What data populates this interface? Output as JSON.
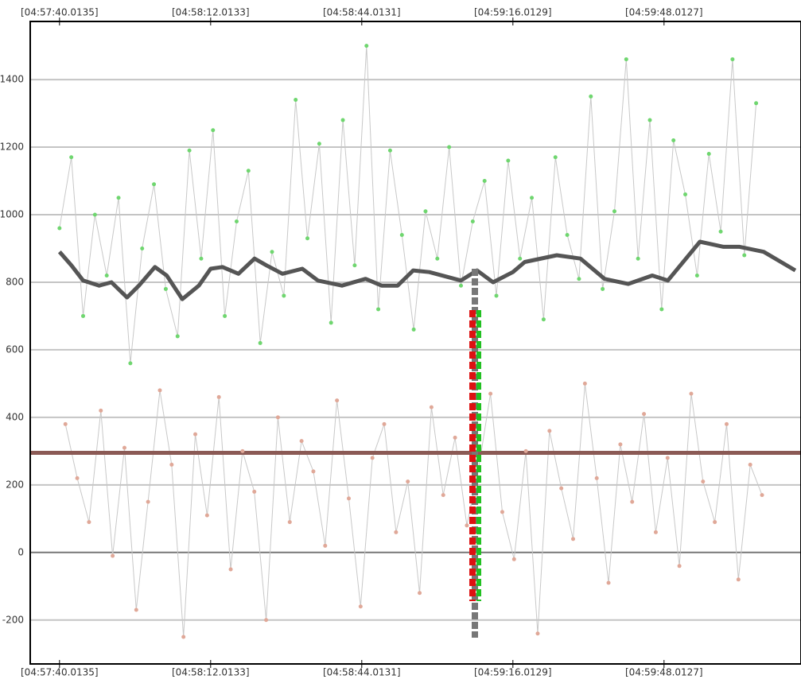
{
  "chart_data": {
    "type": "line",
    "xlim": [
      -6.2,
      157
    ],
    "ylim": [
      -330,
      1572
    ],
    "xticks": [
      {
        "value": 0,
        "label": "[04:57:40.0135]"
      },
      {
        "value": 32,
        "label": "[04:58:12.0133]"
      },
      {
        "value": 64,
        "label": "[04:58:44.0131]"
      },
      {
        "value": 96,
        "label": "[04:59:16.0129]"
      },
      {
        "value": 128,
        "label": "[04:59:48.0127]"
      }
    ],
    "yticks": [
      -200,
      0,
      200,
      400,
      600,
      800,
      1000,
      1200,
      1400
    ],
    "grid": true,
    "series": [
      {
        "mode": "lines+markers",
        "color": "#6fd66f",
        "line_color": "#c8c8c8",
        "line_width": 1,
        "x": [
          0,
          2.5,
          5,
          7.5,
          10,
          12.5,
          15,
          17.5,
          20,
          22.5,
          25,
          27.5,
          30,
          32.5,
          35,
          37.5,
          40,
          42.5,
          45,
          47.5,
          50,
          52.5,
          55,
          57.5,
          60,
          62.5,
          65,
          67.5,
          70,
          72.5,
          75,
          77.5,
          80,
          82.5,
          85,
          87.5,
          90,
          92.5,
          95,
          97.5,
          100,
          102.5,
          105,
          107.5,
          110,
          112.5,
          115,
          117.5,
          120,
          122.5,
          125,
          127.5,
          130,
          132.5,
          135,
          137.5,
          140,
          142.5,
          145,
          147.5
        ],
        "values": [
          960,
          1170,
          700,
          1000,
          820,
          1050,
          560,
          900,
          1090,
          780,
          640,
          1190,
          870,
          1250,
          700,
          980,
          1130,
          620,
          890,
          760,
          1340,
          930,
          1210,
          680,
          1280,
          850,
          1500,
          720,
          1190,
          940,
          660,
          1010,
          870,
          1200,
          790,
          980,
          1100,
          760,
          1160,
          870,
          1050,
          690,
          1170,
          940,
          810,
          1350,
          780,
          1010,
          1460,
          870,
          1280,
          720,
          1220,
          1060,
          820,
          1180,
          950,
          1460,
          880,
          1330
        ]
      },
      {
        "mode": "lines+markers",
        "color": "#e0a898",
        "line_color": "#c8c8c8",
        "line_width": 1,
        "x": [
          1.25,
          3.75,
          6.25,
          8.75,
          11.25,
          13.75,
          16.25,
          18.75,
          21.25,
          23.75,
          26.25,
          28.75,
          31.25,
          33.75,
          36.25,
          38.75,
          41.25,
          43.75,
          46.25,
          48.75,
          51.25,
          53.75,
          56.25,
          58.75,
          61.25,
          63.75,
          66.25,
          68.75,
          71.25,
          73.75,
          76.25,
          78.75,
          81.25,
          83.75,
          86.25,
          88.75,
          91.25,
          93.75,
          96.25,
          98.75,
          101.25,
          103.75,
          106.25,
          108.75,
          111.25,
          113.75,
          116.25,
          118.75,
          121.25,
          123.75,
          126.25,
          128.75,
          131.25,
          133.75,
          136.25,
          138.75,
          141.25,
          143.75,
          146.25,
          148.75
        ],
        "values": [
          380,
          220,
          90,
          420,
          -10,
          310,
          -170,
          150,
          480,
          260,
          -250,
          350,
          110,
          460,
          -50,
          300,
          180,
          -200,
          400,
          90,
          330,
          240,
          20,
          450,
          160,
          -160,
          280,
          380,
          60,
          210,
          -120,
          430,
          170,
          340,
          80,
          250,
          470,
          120,
          -20,
          300,
          -240,
          360,
          190,
          40,
          500,
          220,
          -90,
          320,
          150,
          410,
          60,
          280,
          -40,
          470,
          210,
          90,
          380,
          -80,
          260,
          170
        ]
      },
      {
        "mode": "lines",
        "color": "#555555",
        "line_color": "#555555",
        "line_width": 5,
        "x": [
          0,
          2.5,
          5,
          8.4,
          11,
          14.3,
          16.8,
          20.2,
          22.7,
          26,
          29.5,
          32,
          34.5,
          37.9,
          41.3,
          43.8,
          47.2,
          51.4,
          54.7,
          59.8,
          64.8,
          68.2,
          71.6,
          74.9,
          78.3,
          85,
          88.4,
          91.8,
          96,
          98.5,
          105.3,
          110.3,
          115.4,
          120.4,
          125.5,
          128.8,
          135.6,
          140.6,
          144,
          149.1,
          155.8
        ],
        "values": [
          890,
          850,
          805,
          790,
          800,
          755,
          790,
          845,
          820,
          750,
          790,
          840,
          845,
          825,
          870,
          850,
          825,
          840,
          805,
          790,
          810,
          790,
          790,
          835,
          830,
          805,
          835,
          800,
          830,
          860,
          880,
          870,
          810,
          795,
          820,
          805,
          920,
          905,
          905,
          890,
          835
        ]
      },
      {
        "mode": "lines",
        "color": "#8b5a55",
        "line_color": "#8b5a55",
        "line_width": 5,
        "x": [
          -6.2,
          157
        ],
        "values": [
          295,
          295
        ]
      }
    ]
  }
}
